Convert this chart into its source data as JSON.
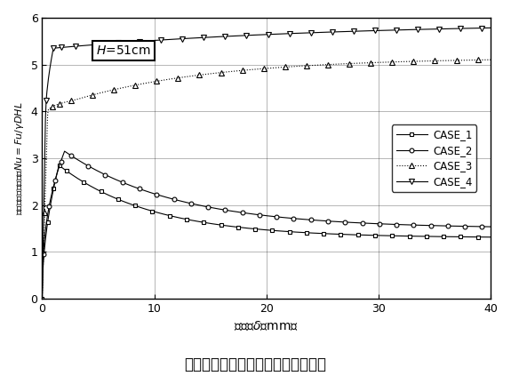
{
  "title": "図３　押し上げ抵抗力と変位の関係",
  "xlabel": "変位：$\\delta$（mm）",
  "ylabel": "押し上げ抵抗力比：$Nu=Fu/\\gamma DHL$",
  "annotation": "$H$=51cm",
  "xlim": [
    0,
    40
  ],
  "ylim": [
    0.0,
    6.0
  ],
  "xticks": [
    0,
    10,
    20,
    30,
    40
  ],
  "yticks": [
    0.0,
    1.0,
    2.0,
    3.0,
    4.0,
    5.0,
    6.0
  ],
  "legend_labels": [
    "CASE_1",
    "CASE_2",
    "CASE_3",
    "CASE_4"
  ],
  "case1_color": "#000000",
  "case2_color": "#000000",
  "case3_color": "#000000",
  "case4_color": "#000000"
}
